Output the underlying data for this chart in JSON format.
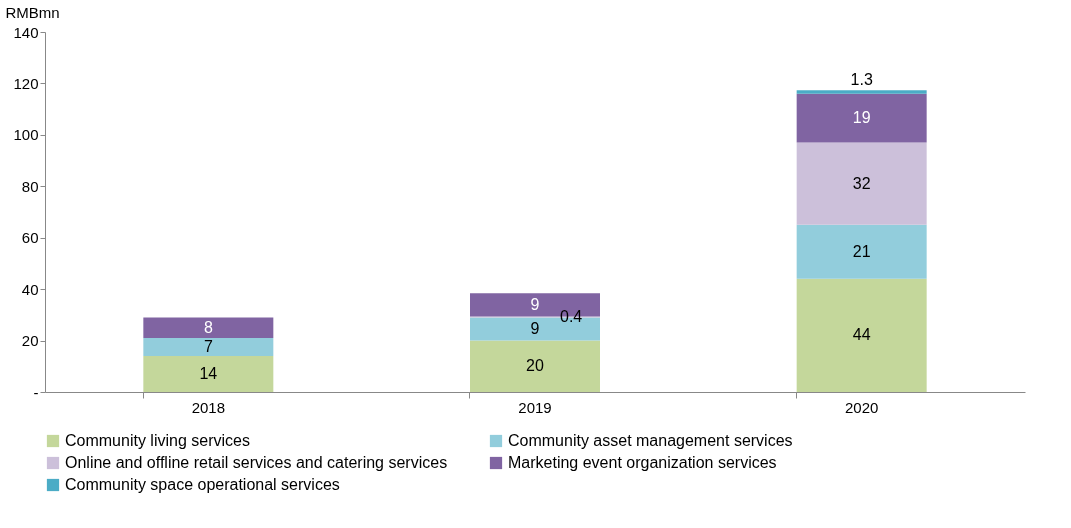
{
  "chart_data": {
    "type": "bar",
    "stacked": true,
    "ylabel": "RMBmn",
    "categories": [
      "2018",
      "2019",
      "2020"
    ],
    "series": [
      {
        "name": "Community living services",
        "color": "#c4d79b",
        "values": [
          14,
          20,
          44
        ]
      },
      {
        "name": "Community asset management services",
        "color": "#92cddc",
        "values": [
          7,
          9,
          21
        ]
      },
      {
        "name": "Online and offline retail services and catering services",
        "color": "#ccc0da",
        "values": [
          null,
          0.4,
          32
        ]
      },
      {
        "name": "Marketing event organization services",
        "color": "#8064a2",
        "values": [
          8,
          9,
          19
        ]
      },
      {
        "name": "Community space operational services",
        "color": "#4bacc6",
        "values": [
          null,
          null,
          1.3
        ]
      }
    ],
    "ylim": [
      0,
      140
    ],
    "yticks": [
      {
        "value": 0,
        "label": "-"
      },
      20,
      40,
      60,
      80,
      100,
      120,
      140
    ],
    "data_labels": true,
    "grid": false,
    "legend": "bottom"
  }
}
